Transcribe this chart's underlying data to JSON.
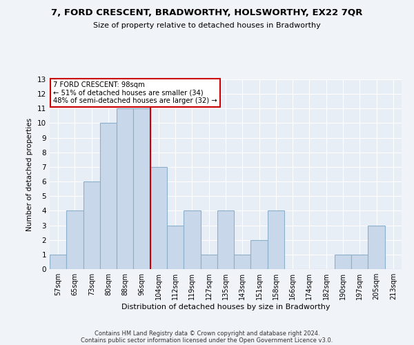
{
  "title": "7, FORD CRESCENT, BRADWORTHY, HOLSWORTHY, EX22 7QR",
  "subtitle": "Size of property relative to detached houses in Bradworthy",
  "xlabel": "Distribution of detached houses by size in Bradworthy",
  "ylabel": "Number of detached properties",
  "bar_labels": [
    "57sqm",
    "65sqm",
    "73sqm",
    "80sqm",
    "88sqm",
    "96sqm",
    "104sqm",
    "112sqm",
    "119sqm",
    "127sqm",
    "135sqm",
    "143sqm",
    "151sqm",
    "158sqm",
    "166sqm",
    "174sqm",
    "182sqm",
    "190sqm",
    "197sqm",
    "205sqm",
    "213sqm"
  ],
  "bar_heights": [
    1,
    4,
    6,
    10,
    11,
    11,
    7,
    3,
    4,
    1,
    4,
    1,
    2,
    4,
    0,
    0,
    0,
    1,
    1,
    3,
    0
  ],
  "bar_color": "#c8d8ea",
  "bar_edge_color": "#8ab0cc",
  "background_color": "#e8eef6",
  "grid_color": "#ffffff",
  "annotation_line1": "7 FORD CRESCENT: 98sqm",
  "annotation_line2": "← 51% of detached houses are smaller (34)",
  "annotation_line3": "48% of semi-detached houses are larger (32) →",
  "annotation_box_color": "#ffffff",
  "annotation_box_edge": "#cc0000",
  "vline_color": "#cc0000",
  "ylim_min": 0,
  "ylim_max": 13,
  "yticks": [
    0,
    1,
    2,
    3,
    4,
    5,
    6,
    7,
    8,
    9,
    10,
    11,
    12,
    13
  ],
  "fig_bg": "#f0f4f8",
  "footer_line1": "Contains HM Land Registry data © Crown copyright and database right 2024.",
  "footer_line2": "Contains public sector information licensed under the Open Government Licence v3.0."
}
